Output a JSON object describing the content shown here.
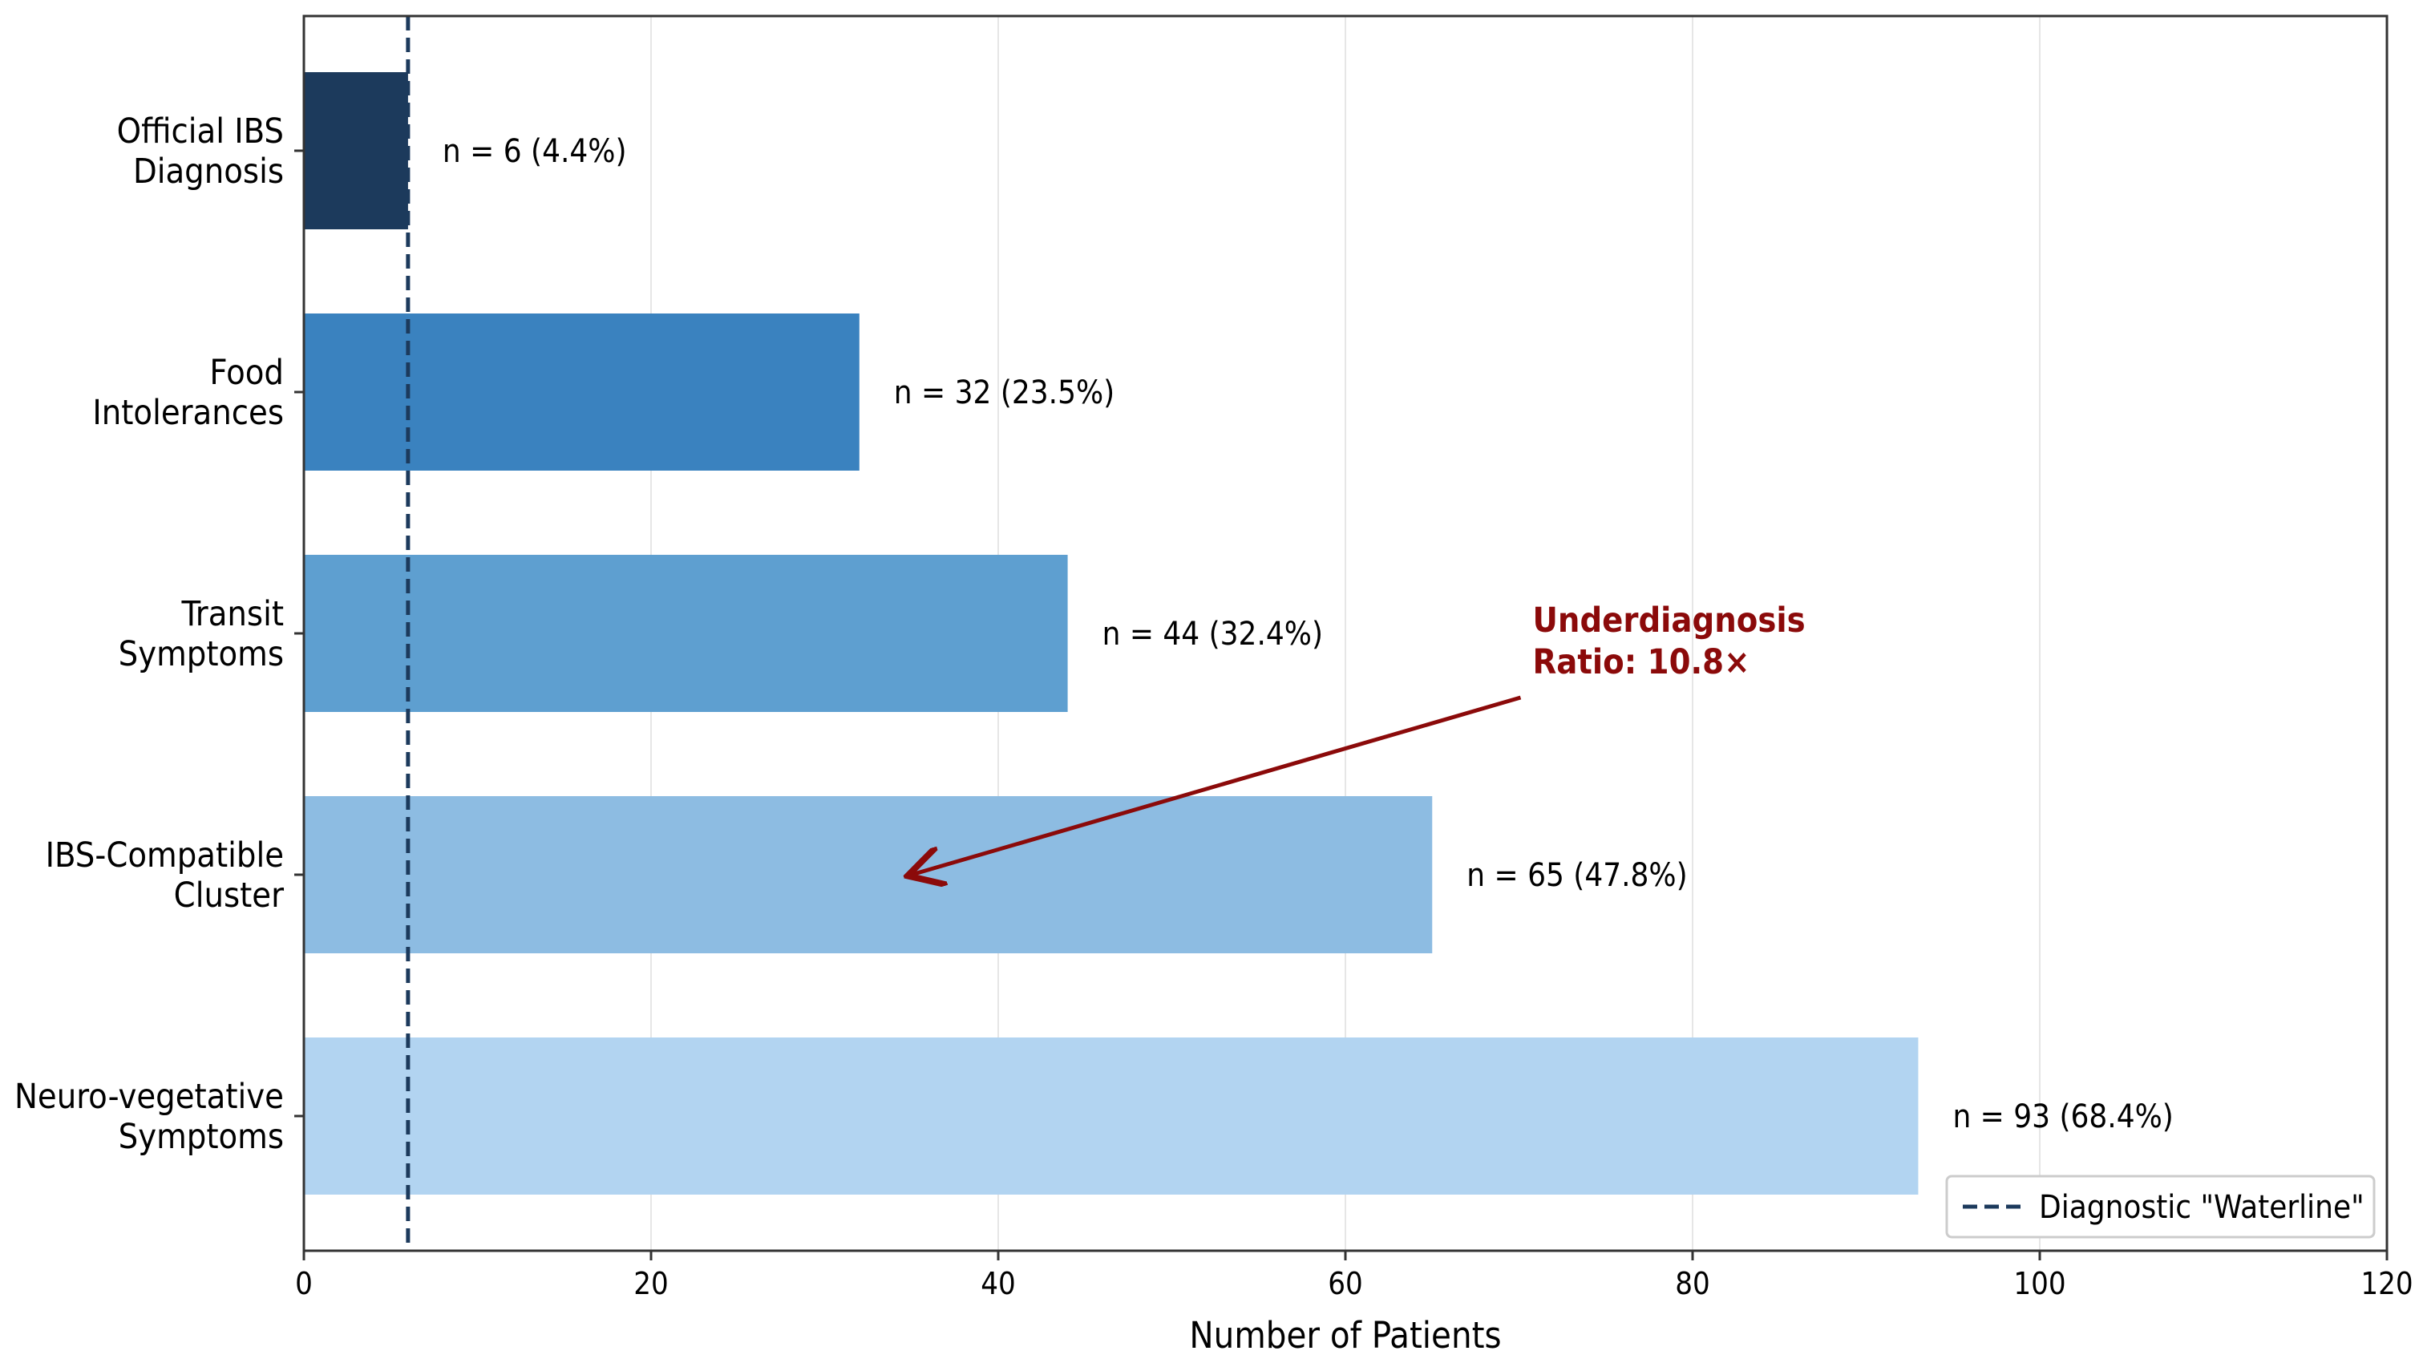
{
  "chart_data": {
    "type": "bar",
    "orientation": "horizontal",
    "title": "",
    "xlabel": "Number of Patients",
    "ylabel": "",
    "xlim": [
      0,
      120
    ],
    "x_ticks": [
      0,
      20,
      40,
      60,
      80,
      100,
      120
    ],
    "grid": "vertical gridlines on x ticks",
    "categories": [
      [
        "Official IBS",
        "Diagnosis"
      ],
      [
        "Food",
        "Intolerances"
      ],
      [
        "Transit",
        "Symptoms"
      ],
      [
        "IBS-Compatible",
        "Cluster"
      ],
      [
        "Neuro-vegetative",
        "Symptoms"
      ]
    ],
    "values": [
      6,
      32,
      44,
      65,
      93
    ],
    "value_labels": [
      "n = 6 (4.4%)",
      "n = 32 (23.5%)",
      "n = 44 (32.4%)",
      "n = 65 (47.8%)",
      "n = 93 (68.4%)"
    ],
    "bar_colors": [
      "#1c3a5c",
      "#3a82bf",
      "#5e9fd0",
      "#8dbce2",
      "#b2d4f1"
    ],
    "reference_line": {
      "x": 6,
      "style": "dashed",
      "color": "#1c3a5c",
      "legend_label": "Diagnostic \"Waterline\""
    },
    "annotation": {
      "lines": [
        "Underdiagnosis",
        "Ratio: 10.8×"
      ],
      "color": "#8b0a0a",
      "text_at": {
        "x": 70,
        "category_index": 2.0
      },
      "arrow_to": {
        "x": 35,
        "category_index": 3.0
      }
    },
    "legend_position": "lower-right"
  }
}
